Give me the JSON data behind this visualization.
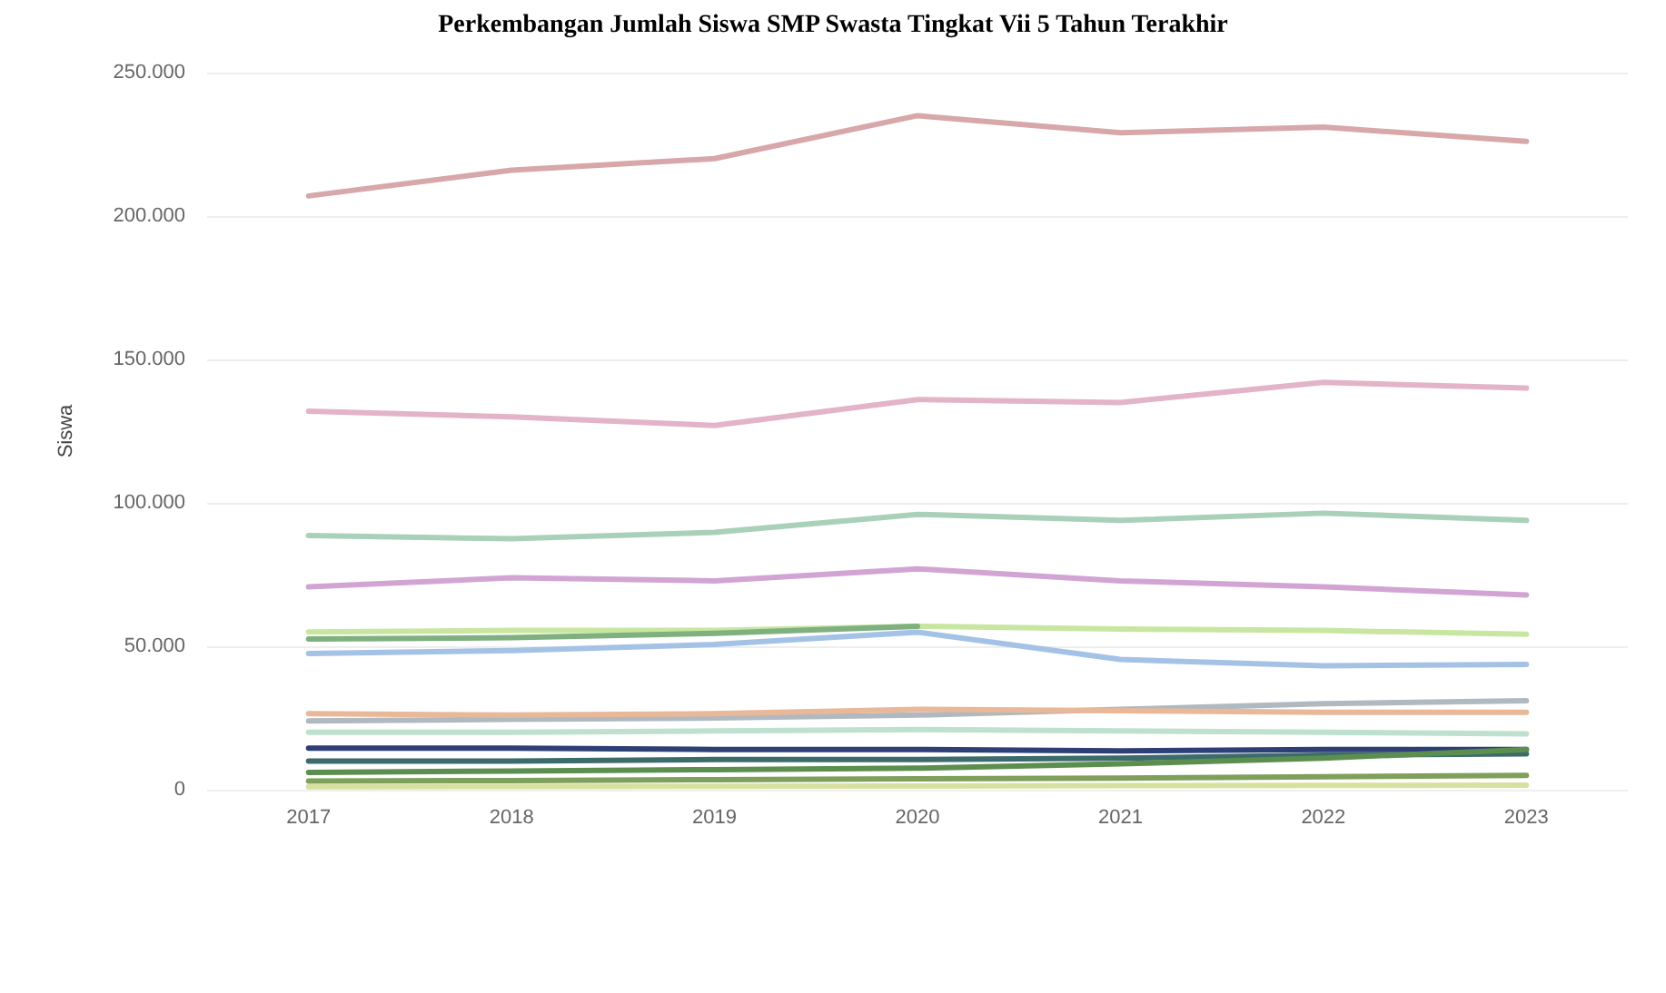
{
  "chart_data": {
    "type": "line",
    "title": "Perkembangan Jumlah Siswa SMP Swasta Tingkat Vii 5 Tahun Terakhir",
    "ylabel": "Siswa",
    "categories": [
      "2017",
      "2018",
      "2019",
      "2020",
      "2021",
      "2022",
      "2023"
    ],
    "ylim": [
      0,
      250000
    ],
    "yticks": [
      0,
      {
        "value": 50000,
        "label": "50.000"
      },
      {
        "value": 100000,
        "label": "100.000"
      },
      {
        "value": 150000,
        "label": "150.000"
      },
      {
        "value": 200000,
        "label": "200.000"
      },
      {
        "value": 250000,
        "label": "250.000"
      }
    ],
    "grid": "y",
    "marker": "none",
    "line_style": "solid",
    "series": [
      {
        "color": "#d7a7aa",
        "values": [
          207000,
          216000,
          220000,
          235000,
          229000,
          231000,
          226000
        ]
      },
      {
        "color": "#e3b3c8",
        "values": [
          132000,
          130000,
          127000,
          136000,
          135000,
          142000,
          140000
        ]
      },
      {
        "color": "#a9d0b8",
        "values": [
          88600,
          87500,
          89700,
          96000,
          93900,
          96400,
          93900
        ]
      },
      {
        "color": "#d2a4d4",
        "values": [
          70700,
          73900,
          72800,
          77000,
          72800,
          70700,
          67900
        ]
      },
      {
        "color": "#c8e6a0",
        "values": [
          55000,
          55500,
          55500,
          57000,
          56000,
          55500,
          54200
        ]
      },
      {
        "color": "#7fb07f",
        "values": [
          52500,
          53000,
          54500,
          57000,
          null,
          null,
          null
        ]
      },
      {
        "color": "#a4c2e6",
        "values": [
          47500,
          48500,
          50600,
          54900,
          45400,
          43200,
          43700
        ]
      },
      {
        "color": "#b0b8c0",
        "values": [
          24000,
          24500,
          25000,
          26000,
          28000,
          30000,
          31000
        ]
      },
      {
        "color": "#e8b898",
        "values": [
          26500,
          26000,
          26500,
          28000,
          27500,
          27000,
          27000
        ]
      },
      {
        "color": "#bde0cf",
        "values": [
          20000,
          20000,
          20500,
          21000,
          20500,
          20000,
          19500
        ]
      },
      {
        "color": "#2d3f75",
        "values": [
          14500,
          14500,
          14000,
          14000,
          13500,
          14000,
          14000
        ]
      },
      {
        "color": "#3d6b6b",
        "values": [
          10000,
          10000,
          10500,
          10500,
          11000,
          12000,
          12500
        ]
      },
      {
        "color": "#5c8f4f",
        "values": [
          6000,
          6500,
          7000,
          7500,
          9000,
          11000,
          14000
        ]
      },
      {
        "color": "#7ea05a",
        "values": [
          3000,
          3200,
          3500,
          3800,
          4000,
          4500,
          5000
        ]
      },
      {
        "color": "#d8e0a0",
        "values": [
          1000,
          1100,
          1200,
          1300,
          1400,
          1500,
          1600
        ]
      }
    ]
  }
}
